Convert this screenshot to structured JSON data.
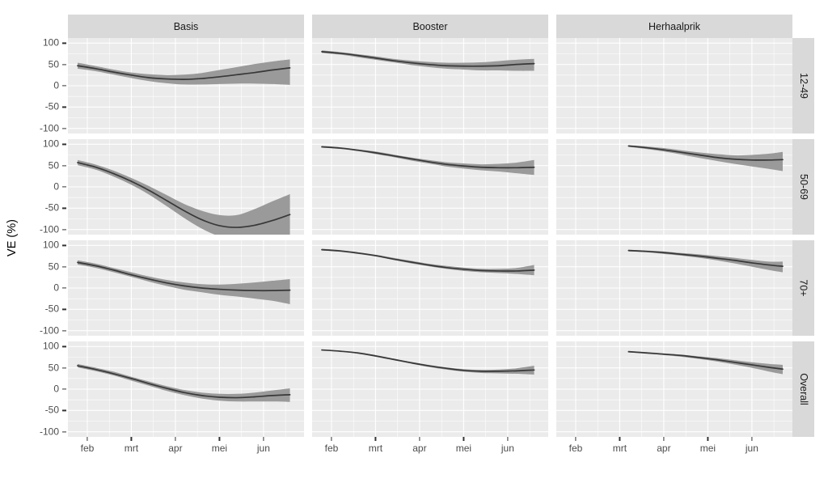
{
  "chart_data": {
    "type": "line",
    "title": "",
    "ylabel": "VE (%)",
    "legend": "none",
    "grid": true,
    "col_facets": [
      "Basis",
      "Booster",
      "Herhaalprik"
    ],
    "row_facets": [
      "12-49",
      "50-69",
      "70+",
      "Overall"
    ],
    "x_ticks": [
      "feb",
      "mrt",
      "apr",
      "mei",
      "jun"
    ],
    "x_tick_values": [
      2,
      3,
      4,
      5,
      6
    ],
    "y_ticks": [
      "100",
      "50",
      "0",
      "-50",
      "-100"
    ],
    "y_tick_values": [
      100,
      50,
      0,
      -50,
      -100
    ],
    "xlim": [
      1.56,
      6.92
    ],
    "ylim": [
      -112,
      112
    ],
    "colors": {
      "panel_bg": "#ebebeb",
      "strip_bg": "#d9d9d9",
      "grid": "#ffffff",
      "ribbon": "#9a9a9a",
      "line": "#383838",
      "tick_text": "#4d4d4d",
      "strip_text": "#1a1a1a"
    },
    "point_format": [
      "x_month",
      "y_ve",
      "ci_low",
      "ci_high"
    ],
    "panels": [
      {
        "col": "Basis",
        "row": "12-49",
        "points": [
          [
            1.78,
            47,
            40,
            54
          ],
          [
            2.2,
            40,
            34,
            46
          ],
          [
            2.6,
            32,
            26,
            38
          ],
          [
            3.0,
            25,
            18,
            31
          ],
          [
            3.4,
            19,
            11,
            27
          ],
          [
            3.8,
            16,
            6,
            25
          ],
          [
            4.2,
            15,
            3,
            26
          ],
          [
            4.6,
            17,
            3,
            30
          ],
          [
            5.0,
            21,
            4,
            37
          ],
          [
            5.4,
            26,
            5,
            44
          ],
          [
            5.8,
            31,
            5,
            51
          ],
          [
            6.2,
            37,
            4,
            57
          ],
          [
            6.6,
            42,
            2,
            62
          ]
        ]
      },
      {
        "col": "Booster",
        "row": "12-49",
        "points": [
          [
            1.78,
            80,
            77,
            83
          ],
          [
            2.2,
            76,
            73,
            79
          ],
          [
            2.6,
            71,
            67,
            74
          ],
          [
            3.0,
            65,
            61,
            69
          ],
          [
            3.4,
            59,
            55,
            63
          ],
          [
            3.8,
            54,
            49,
            59
          ],
          [
            4.2,
            50,
            44,
            56
          ],
          [
            4.6,
            47,
            40,
            54
          ],
          [
            5.0,
            46,
            38,
            54
          ],
          [
            5.4,
            46,
            36,
            55
          ],
          [
            5.8,
            47,
            36,
            58
          ],
          [
            6.2,
            50,
            35,
            61
          ],
          [
            6.6,
            52,
            35,
            63
          ]
        ]
      },
      {
        "col": "Herhaalprik",
        "row": "12-49",
        "points": []
      },
      {
        "col": "Basis",
        "row": "50-69",
        "points": [
          [
            1.78,
            57,
            51,
            63
          ],
          [
            2.2,
            46,
            40,
            52
          ],
          [
            2.6,
            31,
            24,
            38
          ],
          [
            3.0,
            13,
            5,
            21
          ],
          [
            3.4,
            -8,
            -18,
            2
          ],
          [
            3.8,
            -32,
            -45,
            -19
          ],
          [
            4.2,
            -56,
            -73,
            -40
          ],
          [
            4.6,
            -77,
            -98,
            -56
          ],
          [
            5.0,
            -91,
            -116,
            -66
          ],
          [
            5.4,
            -95,
            -124,
            -66
          ],
          [
            5.8,
            -90,
            -128,
            -52
          ],
          [
            6.2,
            -79,
            -130,
            -34
          ],
          [
            6.6,
            -65,
            -130,
            -17
          ]
        ]
      },
      {
        "col": "Booster",
        "row": "50-69",
        "points": [
          [
            1.78,
            94,
            92,
            96
          ],
          [
            2.2,
            91,
            89,
            93
          ],
          [
            2.6,
            86,
            84,
            88
          ],
          [
            3.0,
            80,
            77,
            83
          ],
          [
            3.4,
            73,
            70,
            76
          ],
          [
            3.8,
            66,
            62,
            69
          ],
          [
            4.2,
            59,
            55,
            63
          ],
          [
            4.6,
            53,
            48,
            58
          ],
          [
            5.0,
            49,
            43,
            55
          ],
          [
            5.4,
            46,
            39,
            53
          ],
          [
            5.8,
            45,
            36,
            54
          ],
          [
            6.2,
            45,
            32,
            57
          ],
          [
            6.6,
            46,
            28,
            63
          ]
        ]
      },
      {
        "col": "Herhaalprik",
        "row": "50-69",
        "points": [
          [
            3.2,
            96,
            94,
            98
          ],
          [
            3.6,
            92,
            89,
            95
          ],
          [
            4.0,
            87,
            83,
            91
          ],
          [
            4.4,
            81,
            76,
            86
          ],
          [
            4.8,
            75,
            68,
            81
          ],
          [
            5.2,
            69,
            61,
            77
          ],
          [
            5.6,
            65,
            54,
            74
          ],
          [
            6.0,
            63,
            48,
            75
          ],
          [
            6.4,
            63,
            42,
            78
          ],
          [
            6.7,
            64,
            37,
            82
          ]
        ]
      },
      {
        "col": "Basis",
        "row": "70+",
        "points": [
          [
            1.78,
            60,
            55,
            65
          ],
          [
            2.2,
            52,
            47,
            57
          ],
          [
            2.6,
            42,
            37,
            47
          ],
          [
            3.0,
            31,
            26,
            37
          ],
          [
            3.4,
            21,
            15,
            27
          ],
          [
            3.8,
            12,
            5,
            19
          ],
          [
            4.2,
            5,
            -4,
            13
          ],
          [
            4.6,
            0,
            -10,
            9
          ],
          [
            5.0,
            -3,
            -16,
            8
          ],
          [
            5.4,
            -5,
            -20,
            10
          ],
          [
            5.8,
            -6,
            -25,
            13
          ],
          [
            6.2,
            -6,
            -30,
            17
          ],
          [
            6.6,
            -5,
            -38,
            21
          ]
        ]
      },
      {
        "col": "Booster",
        "row": "70+",
        "points": [
          [
            1.78,
            90,
            88,
            92
          ],
          [
            2.2,
            87,
            85,
            89
          ],
          [
            2.6,
            82,
            80,
            84
          ],
          [
            3.0,
            76,
            74,
            78
          ],
          [
            3.4,
            68,
            66,
            71
          ],
          [
            3.8,
            61,
            58,
            64
          ],
          [
            4.2,
            54,
            51,
            57
          ],
          [
            4.6,
            48,
            45,
            52
          ],
          [
            5.0,
            44,
            40,
            48
          ],
          [
            5.4,
            41,
            37,
            45
          ],
          [
            5.8,
            40,
            35,
            45
          ],
          [
            6.2,
            40,
            33,
            47
          ],
          [
            6.6,
            42,
            30,
            54
          ]
        ]
      },
      {
        "col": "Herhaalprik",
        "row": "70+",
        "points": [
          [
            3.2,
            88,
            86,
            90
          ],
          [
            3.6,
            86,
            84,
            88
          ],
          [
            4.0,
            83,
            80,
            86
          ],
          [
            4.4,
            79,
            76,
            82
          ],
          [
            4.8,
            75,
            71,
            79
          ],
          [
            5.2,
            70,
            65,
            75
          ],
          [
            5.6,
            65,
            58,
            71
          ],
          [
            6.0,
            59,
            50,
            66
          ],
          [
            6.4,
            54,
            42,
            62
          ],
          [
            6.7,
            51,
            37,
            62
          ]
        ]
      },
      {
        "col": "Basis",
        "row": "Overall",
        "points": [
          [
            1.78,
            55,
            51,
            59
          ],
          [
            2.2,
            46,
            42,
            50
          ],
          [
            2.6,
            36,
            32,
            41
          ],
          [
            3.0,
            25,
            20,
            29
          ],
          [
            3.4,
            13,
            8,
            18
          ],
          [
            3.8,
            2,
            -4,
            7
          ],
          [
            4.2,
            -8,
            -14,
            -2
          ],
          [
            4.6,
            -15,
            -22,
            -8
          ],
          [
            5.0,
            -19,
            -27,
            -11
          ],
          [
            5.4,
            -20,
            -29,
            -11
          ],
          [
            5.8,
            -18,
            -29,
            -8
          ],
          [
            6.2,
            -15,
            -29,
            -3
          ],
          [
            6.6,
            -13,
            -30,
            2
          ]
        ]
      },
      {
        "col": "Booster",
        "row": "Overall",
        "points": [
          [
            1.78,
            92,
            91,
            93
          ],
          [
            2.2,
            89,
            88,
            90
          ],
          [
            2.6,
            85,
            83,
            86
          ],
          [
            3.0,
            78,
            76,
            80
          ],
          [
            3.4,
            70,
            68,
            72
          ],
          [
            3.8,
            62,
            60,
            64
          ],
          [
            4.2,
            55,
            52,
            57
          ],
          [
            4.6,
            49,
            46,
            51
          ],
          [
            5.0,
            44,
            41,
            47
          ],
          [
            5.4,
            42,
            38,
            45
          ],
          [
            5.8,
            42,
            37,
            46
          ],
          [
            6.2,
            43,
            36,
            49
          ],
          [
            6.6,
            45,
            34,
            55
          ]
        ]
      },
      {
        "col": "Herhaalprik",
        "row": "Overall",
        "points": [
          [
            3.2,
            88,
            86,
            89
          ],
          [
            3.6,
            85,
            84,
            87
          ],
          [
            4.0,
            82,
            80,
            84
          ],
          [
            4.4,
            79,
            76,
            81
          ],
          [
            4.8,
            74,
            71,
            77
          ],
          [
            5.2,
            69,
            65,
            73
          ],
          [
            5.6,
            63,
            58,
            68
          ],
          [
            6.0,
            57,
            50,
            63
          ],
          [
            6.4,
            51,
            41,
            59
          ],
          [
            6.7,
            47,
            35,
            57
          ]
        ]
      }
    ]
  }
}
